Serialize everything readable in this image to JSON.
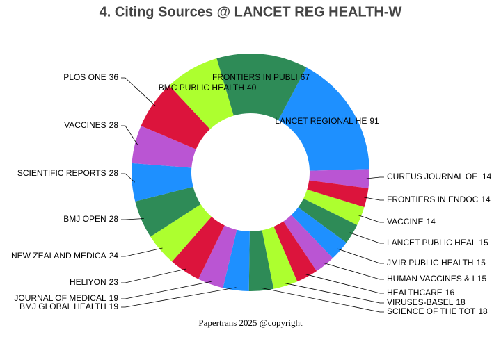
{
  "chart_data": {
    "type": "donut",
    "title": "4. Citing Sources @ LANCET REG HEALTH-W",
    "categories": [
      "LANCET REGIONAL HE",
      "CUREUS JOURNAL OF ",
      "FRONTIERS IN ENDOC",
      "VACCINE",
      "LANCET PUBLIC HEAL",
      "JMIR PUBLIC HEALTH",
      "HUMAN VACCINES & I",
      "HEALTHCARE",
      "VIRUSES-BASEL",
      "SCIENCE OF THE TOT",
      "BMJ GLOBAL HEALTH",
      "JOURNAL OF MEDICAL",
      "HELIYON",
      "NEW ZEALAND MEDICA",
      "BMJ OPEN",
      "SCIENTIFIC REPORTS",
      "VACCINES",
      "PLOS ONE",
      "BMC PUBLIC HEALTH",
      "FRONTIERS IN PUBLI"
    ],
    "values": [
      91,
      14,
      14,
      14,
      15,
      15,
      15,
      16,
      18,
      18,
      19,
      19,
      23,
      24,
      28,
      28,
      28,
      36,
      40,
      67
    ],
    "colors": [
      "#1e90ff",
      "#ba55d3",
      "#dc143c",
      "#adff2f",
      "#2e8b57"
    ],
    "footer": "Papertrans 2025 @copyright"
  }
}
